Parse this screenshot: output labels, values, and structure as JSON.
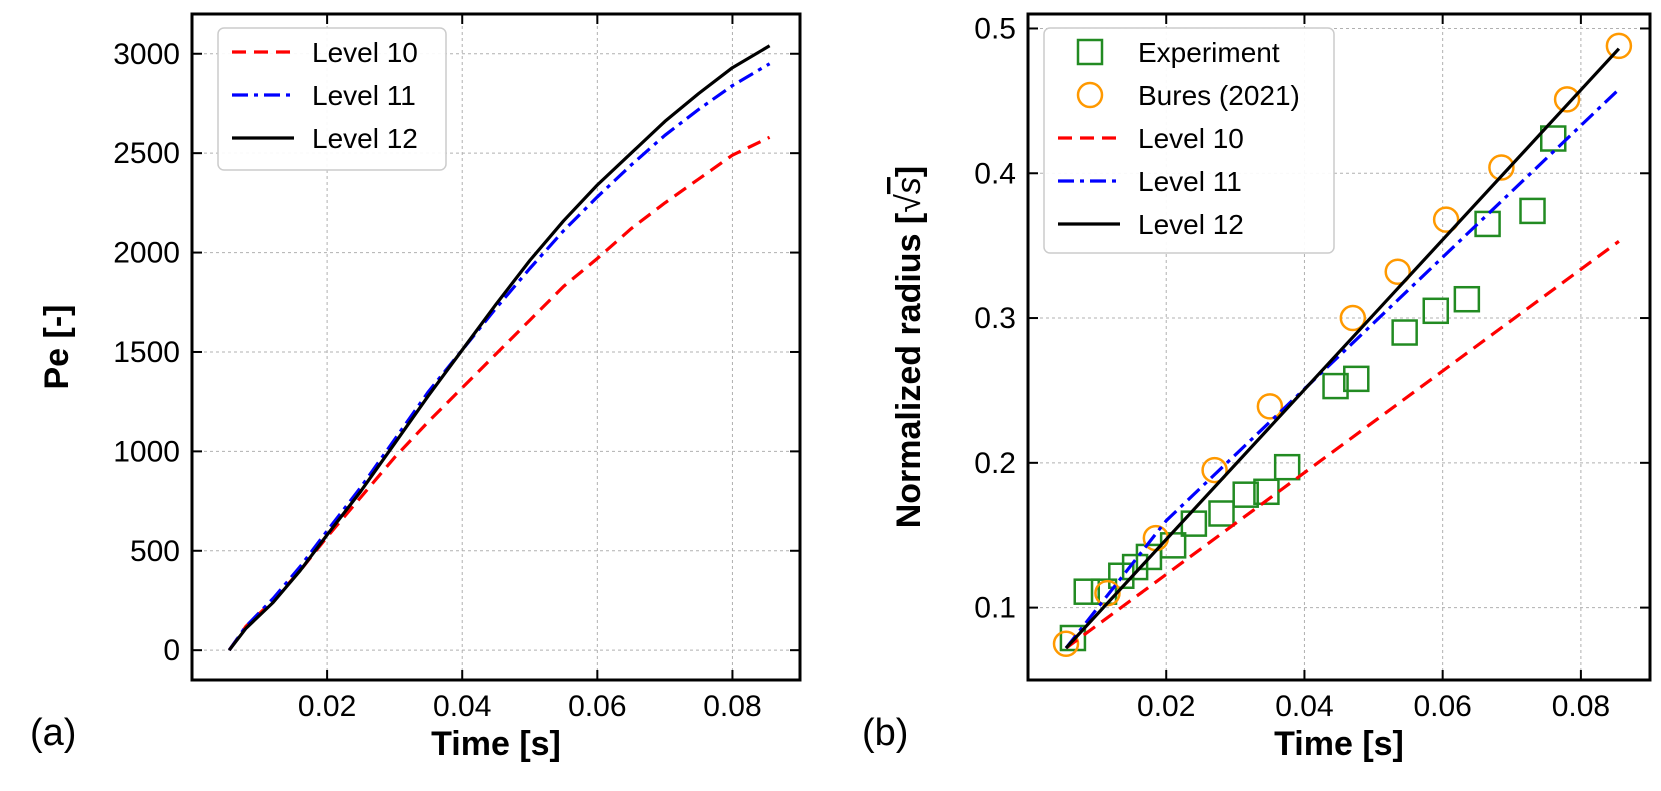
{
  "chart_data": [
    {
      "type": "line",
      "panel_label": "(a)",
      "xlabel": "Time [s]",
      "ylabel": "Pe [-]",
      "xlim": [
        0.0,
        0.09
      ],
      "ylim": [
        -150,
        3200
      ],
      "xticks": [
        0.02,
        0.04,
        0.06,
        0.08
      ],
      "xtick_labels": [
        "0.02",
        "0.04",
        "0.06",
        "0.08"
      ],
      "yticks": [
        0,
        500,
        1000,
        1500,
        2000,
        2500,
        3000
      ],
      "ytick_labels": [
        "0",
        "500",
        "1000",
        "1500",
        "2000",
        "2500",
        "3000"
      ],
      "grid": true,
      "legend_position": "top-left",
      "series": [
        {
          "name": "Level 10",
          "color": "#ff0000",
          "style": "dashed",
          "x": [
            0.0055,
            0.008,
            0.012,
            0.016,
            0.02,
            0.025,
            0.03,
            0.035,
            0.04,
            0.045,
            0.05,
            0.055,
            0.06,
            0.065,
            0.07,
            0.075,
            0.08,
            0.0855
          ],
          "y": [
            0,
            120,
            250,
            400,
            570,
            770,
            970,
            1150,
            1320,
            1490,
            1660,
            1830,
            1970,
            2120,
            2250,
            2370,
            2490,
            2580
          ]
        },
        {
          "name": "Level 11",
          "color": "#0000ff",
          "style": "dashdot",
          "x": [
            0.0055,
            0.008,
            0.012,
            0.016,
            0.02,
            0.025,
            0.03,
            0.035,
            0.04,
            0.045,
            0.05,
            0.055,
            0.06,
            0.065,
            0.07,
            0.075,
            0.08,
            0.0855
          ],
          "y": [
            0,
            120,
            260,
            420,
            600,
            820,
            1060,
            1300,
            1510,
            1720,
            1920,
            2110,
            2280,
            2440,
            2590,
            2720,
            2840,
            2950
          ]
        },
        {
          "name": "Level 12",
          "color": "#000000",
          "style": "solid",
          "x": [
            0.0055,
            0.008,
            0.012,
            0.016,
            0.02,
            0.025,
            0.03,
            0.035,
            0.04,
            0.045,
            0.05,
            0.055,
            0.06,
            0.065,
            0.07,
            0.075,
            0.08,
            0.0855
          ],
          "y": [
            0,
            110,
            240,
            400,
            580,
            800,
            1040,
            1280,
            1510,
            1740,
            1960,
            2160,
            2340,
            2500,
            2660,
            2800,
            2930,
            3040
          ]
        }
      ]
    },
    {
      "type": "line",
      "panel_label": "(b)",
      "xlabel": "Time [s]",
      "ylabel": "Normalized radius [",
      "ylabel_unit": "s",
      "ylabel_close": "]",
      "sqrt_symbol": "√",
      "xlim": [
        0.0,
        0.09
      ],
      "ylim": [
        0.05,
        0.51
      ],
      "xticks": [
        0.02,
        0.04,
        0.06,
        0.08
      ],
      "xtick_labels": [
        "0.02",
        "0.04",
        "0.06",
        "0.08"
      ],
      "yticks": [
        0.1,
        0.2,
        0.3,
        0.4,
        0.5
      ],
      "ytick_labels": [
        "0.1",
        "0.2",
        "0.3",
        "0.4",
        "0.5"
      ],
      "grid": true,
      "legend_position": "top-left",
      "series": [
        {
          "name": "Experiment",
          "color": "#228b22",
          "marker": "square",
          "x": [
            0.0065,
            0.0085,
            0.011,
            0.0135,
            0.0155,
            0.0175,
            0.021,
            0.024,
            0.028,
            0.0315,
            0.0345,
            0.0375,
            0.0445,
            0.0475,
            0.0545,
            0.059,
            0.0635,
            0.0665,
            0.073,
            0.076
          ],
          "y": [
            0.079,
            0.111,
            0.111,
            0.122,
            0.128,
            0.135,
            0.143,
            0.158,
            0.165,
            0.178,
            0.18,
            0.197,
            0.253,
            0.258,
            0.29,
            0.305,
            0.313,
            0.365,
            0.374,
            0.424
          ]
        },
        {
          "name": "Bures (2021)",
          "color": "#ff9900",
          "marker": "circle",
          "x": [
            0.0055,
            0.0115,
            0.0185,
            0.027,
            0.035,
            0.047,
            0.0535,
            0.0605,
            0.0685,
            0.078,
            0.0855
          ],
          "y": [
            0.075,
            0.11,
            0.148,
            0.195,
            0.239,
            0.3,
            0.332,
            0.368,
            0.404,
            0.451,
            0.488
          ]
        },
        {
          "name": "Level 10",
          "color": "#ff0000",
          "style": "dashed",
          "x": [
            0.0055,
            0.0855
          ],
          "y": [
            0.072,
            0.353
          ]
        },
        {
          "name": "Level 11",
          "color": "#0000ff",
          "style": "dashdot",
          "x": [
            0.0055,
            0.02,
            0.0855
          ],
          "y": [
            0.072,
            0.16,
            0.458
          ]
        },
        {
          "name": "Level 12",
          "color": "#000000",
          "style": "solid",
          "x": [
            0.0055,
            0.0855
          ],
          "y": [
            0.072,
            0.486
          ]
        }
      ]
    }
  ]
}
